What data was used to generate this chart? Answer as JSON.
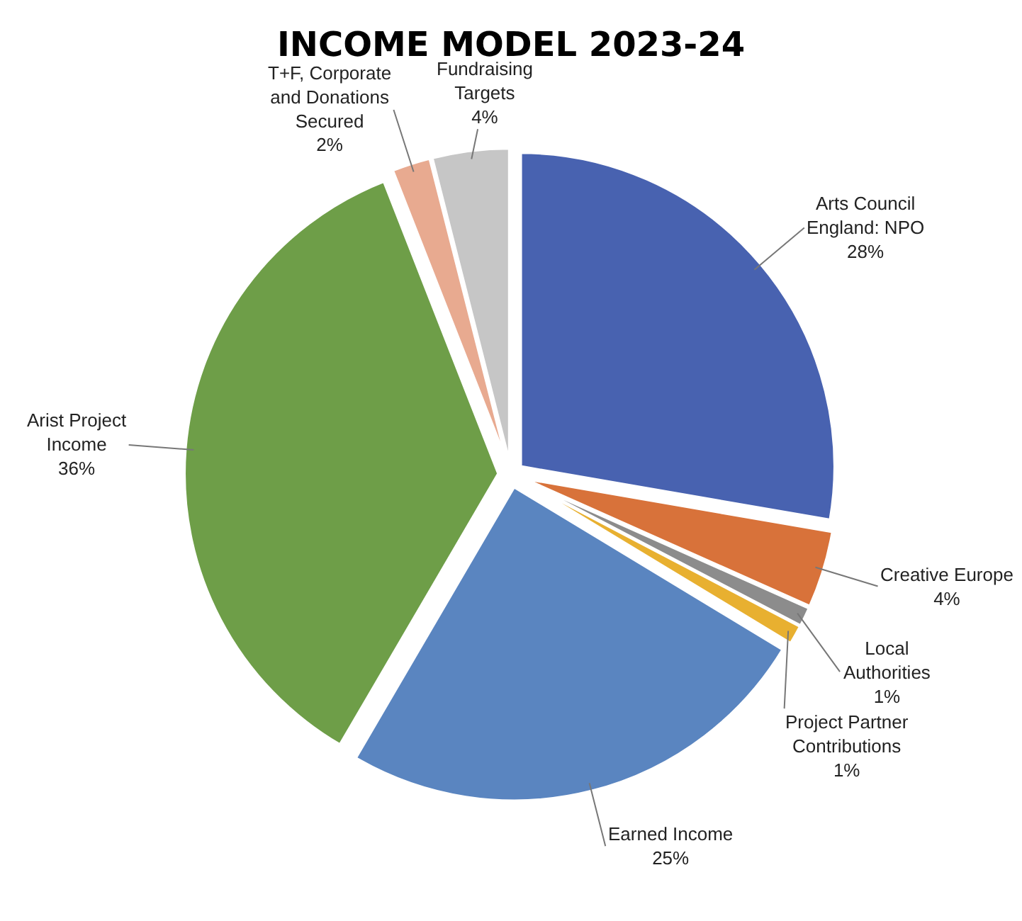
{
  "chart_data": {
    "type": "pie",
    "title": "INCOME MODEL 2023-24",
    "categories": [
      "Arts Council England: NPO",
      "Creative Europe",
      "Local Authorities",
      "Project Partner Contributions",
      "Earned Income",
      "Arist Project Income",
      "T+F, Corporate and Donations Secured",
      "Fundraising Targets"
    ],
    "values": [
      28,
      4,
      1,
      1,
      25,
      36,
      2,
      4
    ],
    "value_labels": [
      "28%",
      "4%",
      "1%",
      "1%",
      "25%",
      "36%",
      "2%",
      "4%"
    ],
    "colors": [
      "#4862b0",
      "#d8723a",
      "#8c8c8c",
      "#e8b030",
      "#5a85c0",
      "#6e9e48",
      "#e8aa90",
      "#c6c6c6"
    ],
    "legend": false
  }
}
